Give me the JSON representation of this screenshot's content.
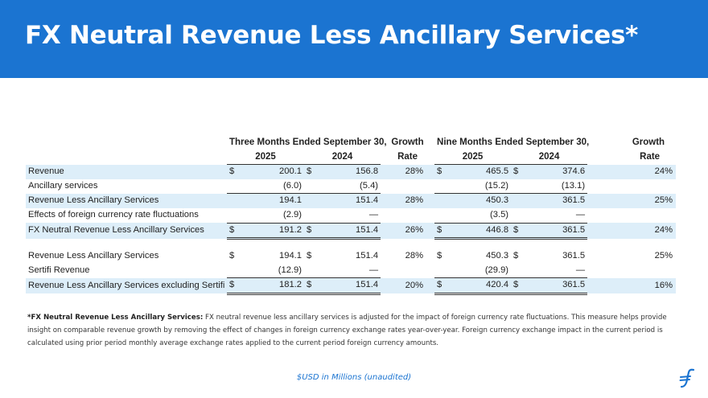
{
  "title": "FX Neutral Revenue Less Ancillary Services*",
  "table": {
    "period_headers": {
      "three_months": "Three Months Ended September 30,",
      "growth_1": "Growth",
      "nine_months": "Nine Months Ended September 30,",
      "growth_2": "Growth"
    },
    "year_headers": {
      "q_2025": "2025",
      "q_2024": "2024",
      "rate_1": "Rate",
      "n_2025": "2025",
      "n_2024": "2024",
      "rate_2": "Rate"
    },
    "rows": [
      {
        "label": "Revenue",
        "q25_sym": "$",
        "q25": "200.1",
        "q24_sym": "$",
        "q24": "156.8",
        "g1": "28%",
        "n25_sym": "$",
        "n25": "465.5",
        "n24_sym": "$",
        "n24": "374.6",
        "g2": "24%"
      },
      {
        "label": "Ancillary services",
        "q25_sym": "",
        "q25": "(6.0)",
        "q24_sym": "",
        "q24": "(5.4)",
        "g1": "",
        "n25_sym": "",
        "n25": "(15.2)",
        "n24_sym": "",
        "n24": "(13.1)",
        "g2": ""
      },
      {
        "label": "Revenue Less Ancillary Services",
        "q25_sym": "",
        "q25": "194.1",
        "q24_sym": "",
        "q24": "151.4",
        "g1": "28%",
        "n25_sym": "",
        "n25": "450.3",
        "n24_sym": "",
        "n24": "361.5",
        "g2": "25%"
      },
      {
        "label": "Effects of foreign currency rate fluctuations",
        "q25_sym": "",
        "q25": "(2.9)",
        "q24_sym": "",
        "q24": "—",
        "g1": "",
        "n25_sym": "",
        "n25": "(3.5)",
        "n24_sym": "",
        "n24": "—",
        "g2": ""
      },
      {
        "label": "FX Neutral Revenue Less Ancillary Services",
        "q25_sym": "$",
        "q25": "191.2",
        "q24_sym": "$",
        "q24": "151.4",
        "g1": "26%",
        "n25_sym": "$",
        "n25": "446.8",
        "n24_sym": "$",
        "n24": "361.5",
        "g2": "24%"
      },
      {
        "label": "Revenue Less Ancillary Services",
        "q25_sym": "$",
        "q25": "194.1",
        "q24_sym": "$",
        "q24": "151.4",
        "g1": "28%",
        "n25_sym": "$",
        "n25": "450.3",
        "n24_sym": "$",
        "n24": "361.5",
        "g2": "25%"
      },
      {
        "label": "Sertifi Revenue",
        "q25_sym": "",
        "q25": "(12.9)",
        "q24_sym": "",
        "q24": "—",
        "g1": "",
        "n25_sym": "",
        "n25": "(29.9)",
        "n24_sym": "",
        "n24": "—",
        "g2": ""
      },
      {
        "label": "Revenue Less Ancillary Services excluding Sertifi",
        "q25_sym": "$",
        "q25": "181.2",
        "q24_sym": "$",
        "q24": "151.4",
        "g1": "20%",
        "n25_sym": "$",
        "n25": "420.4",
        "n24_sym": "$",
        "n24": "361.5",
        "g2": "16%"
      }
    ]
  },
  "footnote": {
    "bold": "*FX Neutral Revenue Less Ancillary Services:",
    "text": " FX neutral revenue less ancillary services is adjusted for the impact of foreign currency rate fluctuations.  This measure helps provide insight on comparable revenue growth by removing the effect of changes in foreign currency exchange rates year-over-year.  Foreign currency exchange impact in the current period is calculated using prior period monthly average exchange rates applied to the current period foreign currency amounts."
  },
  "unaudited_note": "$USD in Millions (unaudited)",
  "logo_icon": "flywire-f-logo-icon",
  "colors": {
    "brand_blue": "#1b74d1",
    "row_band": "#ddeef9"
  }
}
